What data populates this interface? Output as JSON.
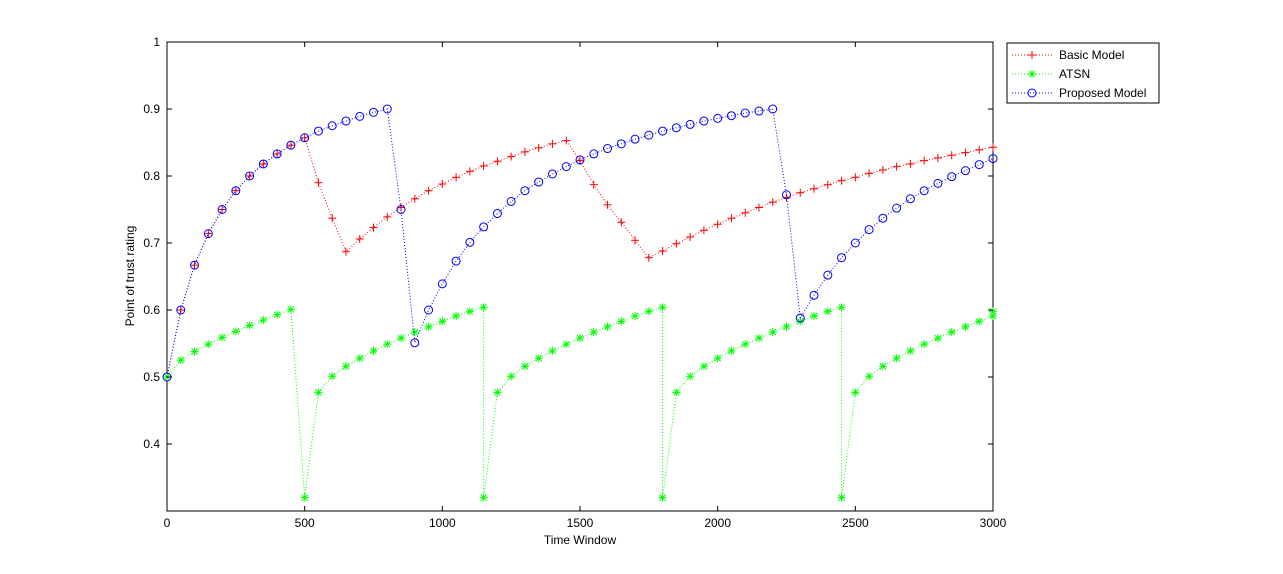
{
  "chart_data": {
    "type": "line",
    "title": "",
    "xlabel": "Time Window",
    "ylabel": "Point of trust rating",
    "xlim": [
      0,
      3000
    ],
    "ylim": [
      0.3,
      1.0
    ],
    "xticks": [
      0,
      500,
      1000,
      1500,
      2000,
      2500,
      3000
    ],
    "yticks": [
      0.4,
      0.5,
      0.6,
      0.7,
      0.8,
      0.9,
      1
    ],
    "ytick_labels": [
      "0.4",
      "0.5",
      "0.6",
      "0.7",
      "0.8",
      "0.9",
      "1"
    ],
    "grid": false,
    "legend_position": "outside-top-right",
    "x": [
      0,
      50,
      100,
      150,
      200,
      250,
      300,
      350,
      400,
      450,
      500,
      550,
      600,
      650,
      700,
      750,
      800,
      850,
      900,
      950,
      1000,
      1050,
      1100,
      1150,
      1200,
      1250,
      1300,
      1350,
      1400,
      1450,
      1500,
      1550,
      1600,
      1650,
      1700,
      1750,
      1800,
      1850,
      1900,
      1950,
      2000,
      2050,
      2100,
      2150,
      2200,
      2250,
      2300,
      2350,
      2400,
      2450,
      2500,
      2550,
      2600,
      2650,
      2700,
      2750,
      2800,
      2850,
      2900,
      2950,
      3000
    ],
    "series": [
      {
        "name": "Basic Model",
        "color": "#ff0000",
        "marker": "plus",
        "linestyle": "dotted",
        "values": [
          0.5,
          0.6,
          0.667,
          0.714,
          0.75,
          0.778,
          0.8,
          0.818,
          0.833,
          0.846,
          0.857,
          0.79,
          0.737,
          0.687,
          0.706,
          0.723,
          0.739,
          0.753,
          0.766,
          0.778,
          0.788,
          0.798,
          0.807,
          0.815,
          0.822,
          0.829,
          0.836,
          0.842,
          0.848,
          0.853,
          0.823,
          0.787,
          0.757,
          0.731,
          0.704,
          0.678,
          0.688,
          0.699,
          0.709,
          0.719,
          0.728,
          0.737,
          0.745,
          0.753,
          0.761,
          0.768,
          0.775,
          0.781,
          0.787,
          0.793,
          0.798,
          0.804,
          0.809,
          0.814,
          0.818,
          0.823,
          0.827,
          0.831,
          0.835,
          0.839,
          0.843
        ]
      },
      {
        "name": "ATSN",
        "color": "#00ff00",
        "marker": "star",
        "linestyle": "dotted",
        "values": [
          0.5,
          0.525,
          0.538,
          0.549,
          0.559,
          0.568,
          0.577,
          0.585,
          0.593,
          0.601,
          0.32,
          0.477,
          0.501,
          0.516,
          0.528,
          0.539,
          0.549,
          0.558,
          0.567,
          0.575,
          0.583,
          0.591,
          0.598,
          0.604,
          0.32,
          0.477,
          0.501,
          0.516,
          0.528,
          0.539,
          0.549,
          0.558,
          0.567,
          0.575,
          0.583,
          0.591,
          0.598,
          0.604,
          0.32,
          0.477,
          0.501,
          0.516,
          0.528,
          0.539,
          0.549,
          0.558,
          0.567,
          0.575,
          0.583,
          0.591,
          0.598,
          0.604,
          0.32,
          0.477,
          0.501,
          0.516,
          0.528,
          0.539,
          0.549,
          0.558,
          0.567,
          0.575,
          0.583,
          0.591,
          0.598
        ],
        "x": [
          0,
          50,
          100,
          150,
          200,
          250,
          300,
          350,
          400,
          450,
          500,
          550,
          600,
          650,
          700,
          750,
          800,
          850,
          900,
          950,
          1000,
          1050,
          1100,
          1150,
          1150,
          1200,
          1250,
          1300,
          1350,
          1400,
          1450,
          1500,
          1550,
          1600,
          1650,
          1700,
          1750,
          1800,
          1800,
          1850,
          1900,
          1950,
          2000,
          2050,
          2100,
          2150,
          2200,
          2250,
          2300,
          2350,
          2400,
          2450,
          2450,
          2500,
          2550,
          2600,
          2650,
          2700,
          2750,
          2800,
          2850,
          2900,
          2950,
          3000,
          3000
        ]
      },
      {
        "name": "Proposed Model",
        "color": "#0000ff",
        "marker": "circle",
        "linestyle": "dotted",
        "values": [
          0.5,
          0.6,
          0.667,
          0.714,
          0.75,
          0.778,
          0.8,
          0.818,
          0.833,
          0.846,
          0.857,
          0.867,
          0.875,
          0.882,
          0.889,
          0.895,
          0.9,
          0.75,
          0.551,
          0.6,
          0.639,
          0.673,
          0.701,
          0.724,
          0.744,
          0.762,
          0.778,
          0.791,
          0.803,
          0.814,
          0.824,
          0.833,
          0.841,
          0.848,
          0.855,
          0.861,
          0.867,
          0.872,
          0.877,
          0.882,
          0.886,
          0.89,
          0.894,
          0.897,
          0.9,
          0.772,
          0.588,
          0.622,
          0.652,
          0.678,
          0.7,
          0.72,
          0.737,
          0.752,
          0.766,
          0.778,
          0.789,
          0.799,
          0.808,
          0.817,
          0.826
        ]
      }
    ]
  }
}
